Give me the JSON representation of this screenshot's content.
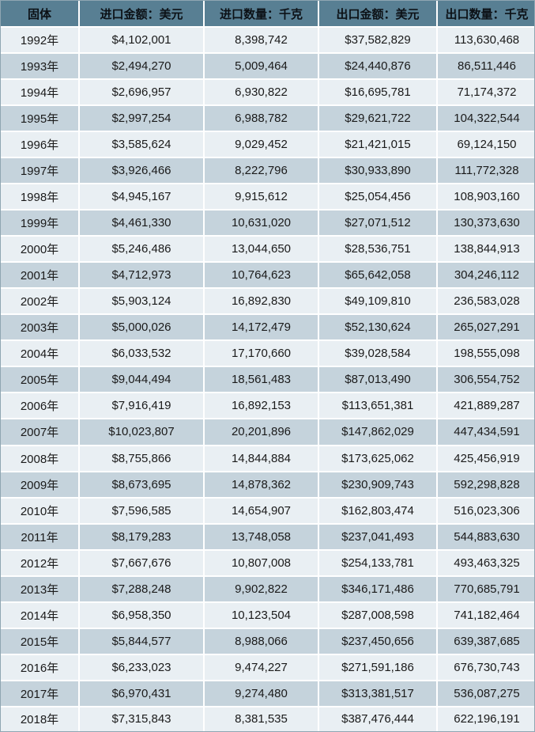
{
  "colors": {
    "header_bg": "#587f93",
    "header_text": "#0c1116",
    "row_light": "#e9eff3",
    "row_dark": "#c5d3dc",
    "grid": "#ffffff",
    "outer_border": "#8fa6b2",
    "cell_text": "#1a1a1a"
  },
  "chart_data": {
    "type": "table",
    "title": "",
    "columns": [
      "固体",
      "进口金额：美元",
      "进口数量：千克",
      "出口金额：美元",
      "出口数量：千克"
    ],
    "rows": [
      [
        "1992年",
        "$4,102,001",
        "8,398,742",
        "$37,582,829",
        "113,630,468"
      ],
      [
        "1993年",
        "$2,494,270",
        "5,009,464",
        "$24,440,876",
        "86,511,446"
      ],
      [
        "1994年",
        "$2,696,957",
        "6,930,822",
        "$16,695,781",
        "71,174,372"
      ],
      [
        "1995年",
        "$2,997,254",
        "6,988,782",
        "$29,621,722",
        "104,322,544"
      ],
      [
        "1996年",
        "$3,585,624",
        "9,029,452",
        "$21,421,015",
        "69,124,150"
      ],
      [
        "1997年",
        "$3,926,466",
        "8,222,796",
        "$30,933,890",
        "111,772,328"
      ],
      [
        "1998年",
        "$4,945,167",
        "9,915,612",
        "$25,054,456",
        "108,903,160"
      ],
      [
        "1999年",
        "$4,461,330",
        "10,631,020",
        "$27,071,512",
        "130,373,630"
      ],
      [
        "2000年",
        "$5,246,486",
        "13,044,650",
        "$28,536,751",
        "138,844,913"
      ],
      [
        "2001年",
        "$4,712,973",
        "10,764,623",
        "$65,642,058",
        "304,246,112"
      ],
      [
        "2002年",
        "$5,903,124",
        "16,892,830",
        "$49,109,810",
        "236,583,028"
      ],
      [
        "2003年",
        "$5,000,026",
        "14,172,479",
        "$52,130,624",
        "265,027,291"
      ],
      [
        "2004年",
        "$6,033,532",
        "17,170,660",
        "$39,028,584",
        "198,555,098"
      ],
      [
        "2005年",
        "$9,044,494",
        "18,561,483",
        "$87,013,490",
        "306,554,752"
      ],
      [
        "2006年",
        "$7,916,419",
        "16,892,153",
        "$113,651,381",
        "421,889,287"
      ],
      [
        "2007年",
        "$10,023,807",
        "20,201,896",
        "$147,862,029",
        "447,434,591"
      ],
      [
        "2008年",
        "$8,755,866",
        "14,844,884",
        "$173,625,062",
        "425,456,919"
      ],
      [
        "2009年",
        "$8,673,695",
        "14,878,362",
        "$230,909,743",
        "592,298,828"
      ],
      [
        "2010年",
        "$7,596,585",
        "14,654,907",
        "$162,803,474",
        "516,023,306"
      ],
      [
        "2011年",
        "$8,179,283",
        "13,748,058",
        "$237,041,493",
        "544,883,630"
      ],
      [
        "2012年",
        "$7,667,676",
        "10,807,008",
        "$254,133,781",
        "493,463,325"
      ],
      [
        "2013年",
        "$7,288,248",
        "9,902,822",
        "$346,171,486",
        "770,685,791"
      ],
      [
        "2014年",
        "$6,958,350",
        "10,123,504",
        "$287,008,598",
        "741,182,464"
      ],
      [
        "2015年",
        "$5,844,577",
        "8,988,066",
        "$237,450,656",
        "639,387,685"
      ],
      [
        "2016年",
        "$6,233,023",
        "9,474,227",
        "$271,591,186",
        "676,730,743"
      ],
      [
        "2017年",
        "$6,970,431",
        "9,274,480",
        "$313,381,517",
        "536,087,275"
      ],
      [
        "2018年",
        "$7,315,843",
        "8,381,535",
        "$387,476,444",
        "622,196,191"
      ]
    ]
  }
}
